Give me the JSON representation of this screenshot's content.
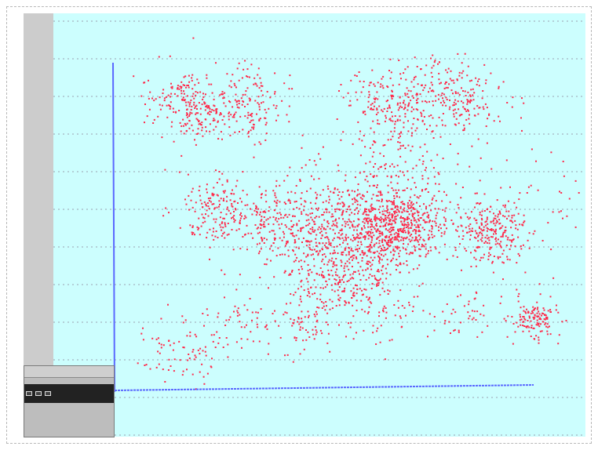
{
  "window": {
    "title": ""
  },
  "colors": {
    "background": "#ccfefe",
    "points": "#ff2a4a",
    "axis": "#5a68ff",
    "sidebar": "#cccccc"
  },
  "panel": {
    "header": "",
    "values": [
      "",
      "",
      ""
    ],
    "labels": [
      "",
      "",
      ""
    ],
    "footer": ""
  },
  "chart_data": {
    "type": "scatter",
    "title": "",
    "xlabel": "",
    "ylabel": "",
    "grid": true,
    "clusters": [
      {
        "cx": 0.16,
        "cy": 0.77,
        "n": 220,
        "s": 0.045
      },
      {
        "cx": 0.27,
        "cy": 0.78,
        "n": 160,
        "s": 0.05
      },
      {
        "cx": 0.22,
        "cy": 0.5,
        "n": 170,
        "s": 0.045
      },
      {
        "cx": 0.4,
        "cy": 0.46,
        "n": 260,
        "s": 0.07
      },
      {
        "cx": 0.53,
        "cy": 0.43,
        "n": 560,
        "s": 0.07
      },
      {
        "cx": 0.61,
        "cy": 0.46,
        "n": 420,
        "s": 0.05
      },
      {
        "cx": 0.8,
        "cy": 0.44,
        "n": 240,
        "s": 0.04
      },
      {
        "cx": 0.47,
        "cy": 0.29,
        "n": 180,
        "s": 0.05
      },
      {
        "cx": 0.6,
        "cy": 0.78,
        "n": 200,
        "s": 0.05
      },
      {
        "cx": 0.73,
        "cy": 0.8,
        "n": 190,
        "s": 0.05
      },
      {
        "cx": 0.62,
        "cy": 0.65,
        "n": 100,
        "s": 0.07
      },
      {
        "cx": 0.14,
        "cy": 0.12,
        "n": 80,
        "s": 0.04
      },
      {
        "cx": 0.27,
        "cy": 0.18,
        "n": 50,
        "s": 0.04
      },
      {
        "cx": 0.4,
        "cy": 0.18,
        "n": 70,
        "s": 0.04
      },
      {
        "cx": 0.58,
        "cy": 0.24,
        "n": 60,
        "s": 0.05
      },
      {
        "cx": 0.89,
        "cy": 0.2,
        "n": 130,
        "s": 0.025
      },
      {
        "cx": 0.75,
        "cy": 0.22,
        "n": 40,
        "s": 0.04
      },
      {
        "cx": 0.85,
        "cy": 0.5,
        "n": 60,
        "s": 0.09
      },
      {
        "cx": 0.3,
        "cy": 0.45,
        "n": 80,
        "s": 0.06
      }
    ]
  }
}
